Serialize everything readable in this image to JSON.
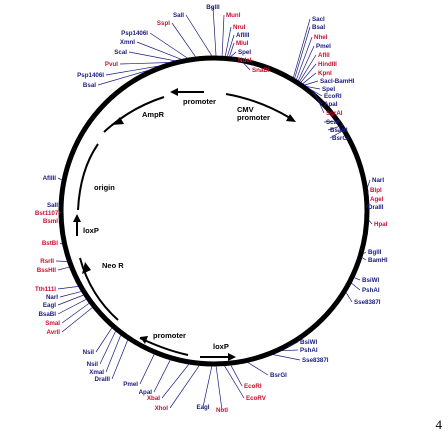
{
  "plasmid": {
    "features": [
      {
        "id": "promoter-top",
        "label": "promoter"
      },
      {
        "id": "cmv-promoter",
        "label": "CMV\npromoter"
      },
      {
        "id": "ampr",
        "label": "AmpR"
      },
      {
        "id": "origin",
        "label": "origin"
      },
      {
        "id": "loxp-left",
        "label": "loxP"
      },
      {
        "id": "neo-r",
        "label": "Neo  R"
      },
      {
        "id": "promoter-bottom",
        "label": "promoter"
      },
      {
        "id": "loxp-bottom",
        "label": "loxP"
      }
    ],
    "sites": [
      {
        "label": "SalI",
        "color": "#1a1a80"
      },
      {
        "label": "BglII",
        "color": "#1a1a80"
      },
      {
        "label": "MunI",
        "color": "#c8102e"
      },
      {
        "label": "NruI",
        "color": "#c8102e"
      },
      {
        "label": "AflIII",
        "color": "#1a1a80"
      },
      {
        "label": "MluI",
        "color": "#c8102e"
      },
      {
        "label": "SpeI",
        "color": "#1a1a80"
      },
      {
        "label": "NdeI",
        "color": "#c8102e"
      },
      {
        "label": "SnaBI",
        "color": "#c8102e"
      },
      {
        "label": "SspI",
        "color": "#c8102e"
      },
      {
        "label": "Psp1406I",
        "color": "#1a1a80"
      },
      {
        "label": "XmnI",
        "color": "#1a1a80"
      },
      {
        "label": "ScaI",
        "color": "#1a1a80"
      },
      {
        "label": "PvuI",
        "color": "#c8102e"
      },
      {
        "label": "Psp1406I",
        "color": "#1a1a80"
      },
      {
        "label": "BsaI",
        "color": "#1a1a80"
      },
      {
        "label": "SacI",
        "color": "#1a1a80"
      },
      {
        "label": "BsaI",
        "color": "#1a1a80"
      },
      {
        "label": "NheI",
        "color": "#c8102e"
      },
      {
        "label": "PmeI",
        "color": "#1a1a80"
      },
      {
        "label": "AflII",
        "color": "#c8102e"
      },
      {
        "label": "HindIII",
        "color": "#c8102e"
      },
      {
        "label": "KpnI",
        "color": "#c8102e"
      },
      {
        "label": "SacI-BamHI",
        "color": "#1a1a80"
      },
      {
        "label": "SpeI",
        "color": "#1a1a80"
      },
      {
        "label": "EcoRI",
        "color": "#1a1a80"
      },
      {
        "label": "ApaI",
        "color": "#1a1a80"
      },
      {
        "label": "SgrAI",
        "color": "#c8102e"
      },
      {
        "label": "ScaI",
        "color": "#1a1a80"
      },
      {
        "label": "BsaBI",
        "color": "#1a1a80"
      },
      {
        "label": "BsrGI",
        "color": "#1a1a80"
      },
      {
        "label": "NarI",
        "color": "#1a1a80"
      },
      {
        "label": "BlpI",
        "color": "#c8102e"
      },
      {
        "label": "AgeI",
        "color": "#c8102e"
      },
      {
        "label": "DraIII",
        "color": "#1a1a80"
      },
      {
        "label": "HpaI",
        "color": "#c8102e"
      },
      {
        "label": "BglII",
        "color": "#1a1a80"
      },
      {
        "label": "BamHI",
        "color": "#1a1a80"
      },
      {
        "label": "BsiWI",
        "color": "#1a1a80"
      },
      {
        "label": "PshAI",
        "color": "#1a1a80"
      },
      {
        "label": "Sse8387I",
        "color": "#1a1a80"
      },
      {
        "label": "AflIII",
        "color": "#1a1a80"
      },
      {
        "label": "SalI",
        "color": "#1a1a80"
      },
      {
        "label": "Bst1107I",
        "color": "#c8102e"
      },
      {
        "label": "BsmI",
        "color": "#c8102e"
      },
      {
        "label": "BstBI",
        "color": "#c8102e"
      },
      {
        "label": "RsrII",
        "color": "#c8102e"
      },
      {
        "label": "BssHII",
        "color": "#c8102e"
      },
      {
        "label": "Tth111I",
        "color": "#c8102e"
      },
      {
        "label": "NarI",
        "color": "#1a1a80"
      },
      {
        "label": "EagI",
        "color": "#1a1a80"
      },
      {
        "label": "BsaBI",
        "color": "#1a1a80"
      },
      {
        "label": "SmaI",
        "color": "#c8102e"
      },
      {
        "label": "AvrII",
        "color": "#c8102e"
      },
      {
        "label": "NsiI",
        "color": "#1a1a80"
      },
      {
        "label": "NsiI",
        "color": "#1a1a80"
      },
      {
        "label": "XmaI",
        "color": "#1a1a80"
      },
      {
        "label": "DraIII",
        "color": "#1a1a80"
      },
      {
        "label": "PmeI",
        "color": "#1a1a80"
      },
      {
        "label": "ApaI",
        "color": "#1a1a80"
      },
      {
        "label": "XbaI",
        "color": "#c8102e"
      },
      {
        "label": "XhoI",
        "color": "#c8102e"
      },
      {
        "label": "EagI",
        "color": "#1a1a80"
      },
      {
        "label": "NotI",
        "color": "#c8102e"
      },
      {
        "label": "EcoRV",
        "color": "#c8102e"
      },
      {
        "label": "EcoRI",
        "color": "#c8102e"
      },
      {
        "label": "BsrGI",
        "color": "#1a1a80"
      },
      {
        "label": "Sse8387I",
        "color": "#1a1a80"
      },
      {
        "label": "PshAI",
        "color": "#1a1a80"
      },
      {
        "label": "BsiWI",
        "color": "#1a1a80"
      }
    ]
  },
  "page_number": "4"
}
